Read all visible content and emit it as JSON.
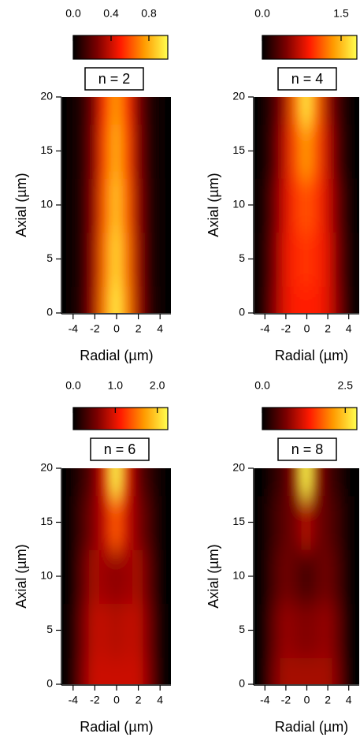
{
  "chart_data": [
    {
      "type": "heatmap",
      "title": "n = 2",
      "xlabel": "Radial (µm)",
      "ylabel": "Axial (µm)",
      "x": [
        -5,
        -4,
        -3,
        -2,
        -1,
        0,
        1,
        2,
        3,
        4,
        5
      ],
      "y": [
        0,
        5,
        10,
        15,
        20
      ],
      "z": [
        [
          0,
          0.02,
          0.1,
          0.33,
          0.71,
          0.95,
          0.71,
          0.33,
          0.1,
          0.02,
          0
        ],
        [
          0,
          0.02,
          0.09,
          0.32,
          0.68,
          0.9,
          0.68,
          0.32,
          0.09,
          0.02,
          0
        ],
        [
          0,
          0.02,
          0.09,
          0.3,
          0.64,
          0.85,
          0.64,
          0.3,
          0.09,
          0.02,
          0
        ],
        [
          0,
          0.02,
          0.08,
          0.28,
          0.6,
          0.8,
          0.6,
          0.28,
          0.08,
          0.02,
          0
        ],
        [
          0,
          0.02,
          0.08,
          0.26,
          0.56,
          0.75,
          0.56,
          0.26,
          0.08,
          0.02,
          0
        ]
      ],
      "xlim": [
        -5,
        5
      ],
      "ylim": [
        0,
        20
      ],
      "xticks": [
        -4,
        -2,
        0,
        2,
        4
      ],
      "yticks": [
        0,
        5,
        10,
        15,
        20
      ],
      "colormap": [
        "#000000",
        "#7a0000",
        "#ff1a00",
        "#ff9a00",
        "#ffff50"
      ],
      "colorbar": {
        "lim": [
          0,
          1
        ],
        "ticks": [
          {
            "value": 0,
            "label": "0.0"
          },
          {
            "value": 0.4,
            "label": "0.4"
          },
          {
            "value": 0.8,
            "label": "0.8"
          }
        ]
      }
    },
    {
      "type": "heatmap",
      "title": "n = 4",
      "xlabel": "Radial (µm)",
      "ylabel": "Axial (µm)",
      "x": [
        -5,
        -4,
        -3,
        -2,
        -1,
        0,
        1,
        2,
        3,
        4,
        5
      ],
      "y": [
        0,
        5,
        10,
        15,
        20
      ],
      "z": [
        [
          0,
          0.1,
          0.5,
          0.8,
          0.9,
          0.9,
          0.9,
          0.8,
          0.5,
          0.1,
          0
        ],
        [
          0,
          0.1,
          0.45,
          0.8,
          0.95,
          1.0,
          0.95,
          0.8,
          0.45,
          0.1,
          0
        ],
        [
          0,
          0.08,
          0.4,
          0.75,
          1.0,
          1.1,
          1.0,
          0.75,
          0.4,
          0.08,
          0
        ],
        [
          0,
          0.05,
          0.3,
          0.7,
          1.1,
          1.35,
          1.1,
          0.7,
          0.3,
          0.05,
          0
        ],
        [
          0,
          0.05,
          0.25,
          0.6,
          1.2,
          1.7,
          1.2,
          0.6,
          0.25,
          0.05,
          0
        ]
      ],
      "xlim": [
        -5,
        5
      ],
      "ylim": [
        0,
        20
      ],
      "xticks": [
        -4,
        -2,
        0,
        2,
        4
      ],
      "yticks": [
        0,
        5,
        10,
        15,
        20
      ],
      "colormap": [
        "#000000",
        "#7a0000",
        "#ff1a00",
        "#ff9a00",
        "#ffff50"
      ],
      "colorbar": {
        "lim": [
          0,
          1.8
        ],
        "ticks": [
          {
            "value": 0,
            "label": "0.0"
          },
          {
            "value": 1.5,
            "label": "1.5"
          }
        ]
      }
    },
    {
      "type": "heatmap",
      "title": "n = 6",
      "xlabel": "Radial (µm)",
      "ylabel": "Axial (µm)",
      "x": [
        -5,
        -4,
        -3,
        -2,
        -1,
        0,
        1,
        2,
        3,
        4,
        5
      ],
      "y": [
        0,
        5,
        10,
        15,
        20
      ],
      "z": [
        [
          0,
          0.1,
          0.6,
          0.9,
          0.9,
          0.9,
          0.9,
          0.9,
          0.6,
          0.1,
          0
        ],
        [
          0,
          0.1,
          0.55,
          0.85,
          0.85,
          0.8,
          0.85,
          0.85,
          0.55,
          0.1,
          0
        ],
        [
          0,
          0.08,
          0.45,
          0.75,
          0.7,
          0.65,
          0.7,
          0.75,
          0.45,
          0.08,
          0
        ],
        [
          0,
          0.05,
          0.35,
          0.6,
          0.9,
          1.4,
          0.9,
          0.6,
          0.35,
          0.05,
          0
        ],
        [
          0,
          0.03,
          0.25,
          0.5,
          1.0,
          2.2,
          1.0,
          0.5,
          0.25,
          0.03,
          0
        ]
      ],
      "xlim": [
        -5,
        5
      ],
      "ylim": [
        0,
        20
      ],
      "xticks": [
        -4,
        -2,
        0,
        2,
        4
      ],
      "yticks": [
        0,
        5,
        10,
        15,
        20
      ],
      "colormap": [
        "#000000",
        "#7a0000",
        "#ff1a00",
        "#ff9a00",
        "#ffff50"
      ],
      "colorbar": {
        "lim": [
          0,
          2.25
        ],
        "ticks": [
          {
            "value": 0,
            "label": "0.0"
          },
          {
            "value": 1,
            "label": "1.0"
          },
          {
            "value": 2,
            "label": "2.0"
          }
        ]
      }
    },
    {
      "type": "heatmap",
      "title": "n = 8",
      "xlabel": "Radial (µm)",
      "ylabel": "Axial (µm)",
      "x": [
        -5,
        -4,
        -3,
        -2,
        -1,
        0,
        1,
        2,
        3,
        4,
        5
      ],
      "y": [
        0,
        5,
        10,
        15,
        20
      ],
      "z": [
        [
          0,
          0.1,
          0.7,
          0.95,
          0.95,
          0.95,
          0.95,
          0.95,
          0.7,
          0.1,
          0
        ],
        [
          0,
          0.1,
          0.6,
          0.85,
          0.8,
          0.75,
          0.8,
          0.85,
          0.6,
          0.1,
          0
        ],
        [
          0,
          0.08,
          0.45,
          0.65,
          0.55,
          0.4,
          0.55,
          0.65,
          0.45,
          0.08,
          0
        ],
        [
          0,
          0.05,
          0.35,
          0.55,
          0.7,
          1.0,
          0.7,
          0.55,
          0.35,
          0.05,
          0
        ],
        [
          0,
          0.03,
          0.25,
          0.45,
          0.9,
          2.8,
          0.9,
          0.45,
          0.25,
          0.03,
          0
        ]
      ],
      "xlim": [
        -5,
        5
      ],
      "ylim": [
        0,
        20
      ],
      "xticks": [
        -4,
        -2,
        0,
        2,
        4
      ],
      "yticks": [
        0,
        5,
        10,
        15,
        20
      ],
      "colormap": [
        "#000000",
        "#7a0000",
        "#ff1a00",
        "#ff9a00",
        "#ffff50"
      ],
      "colorbar": {
        "lim": [
          0,
          2.85
        ],
        "ticks": [
          {
            "value": 0,
            "label": "0.0"
          },
          {
            "value": 2.5,
            "label": "2.5"
          }
        ]
      }
    }
  ]
}
